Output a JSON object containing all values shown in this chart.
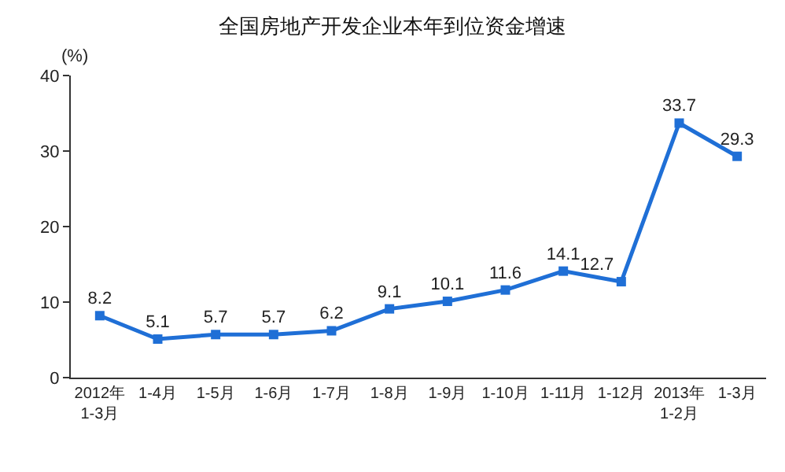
{
  "chart_data": {
    "type": "line",
    "title": "全国房地产开发企业本年到位资金增速",
    "ylabel": "(%)",
    "categories": [
      "2012年\n1-3月",
      "1-4月",
      "1-5月",
      "1-6月",
      "1-7月",
      "1-8月",
      "1-9月",
      "1-10月",
      "1-11月",
      "1-12月",
      "2013年\n1-2月",
      "1-3月"
    ],
    "series": [
      {
        "color": "#1f6fd6",
        "values": [
          8.2,
          5.1,
          5.7,
          5.7,
          6.2,
          9.1,
          10.1,
          11.6,
          14.1,
          12.7,
          33.7,
          29.3
        ]
      }
    ],
    "ylim": [
      0,
      40
    ],
    "yticks": [
      0,
      10,
      20,
      30,
      40
    ],
    "grid": false,
    "marker": "square",
    "line_style": "solid",
    "data_labels": true
  }
}
